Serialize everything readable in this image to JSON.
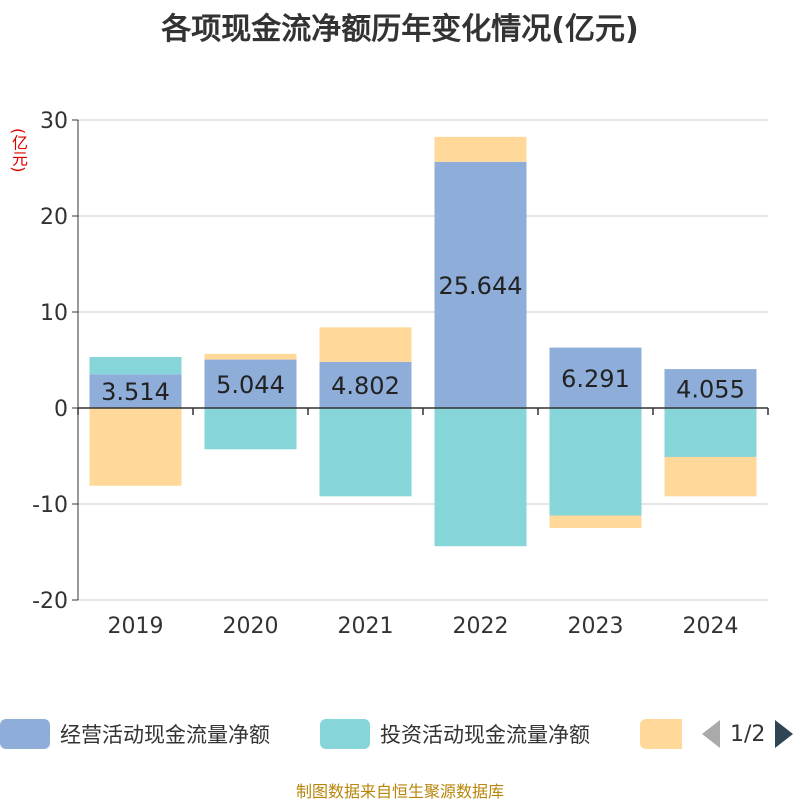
{
  "title": "各项现金流净额历年变化情况(亿元)",
  "unit_label": "(亿元)",
  "source": "制图数据来自恒生聚源数据库",
  "legend": {
    "items": [
      {
        "name": "经营活动现金流量净额",
        "color": "#8eaed9"
      },
      {
        "name": "投资活动现金流量净额",
        "color": "#86d5d8"
      },
      {
        "name": "",
        "color": "#ffd89a"
      }
    ],
    "page_text": "1/2"
  },
  "chart_data": {
    "type": "bar",
    "stacked": true,
    "title": "各项现金流净额历年变化情况(亿元)",
    "ylabel": "(亿元)",
    "ylim": [
      -20,
      30
    ],
    "yticks": [
      -20,
      -10,
      0,
      10,
      20,
      30
    ],
    "categories": [
      "2019",
      "2020",
      "2021",
      "2022",
      "2023",
      "2024"
    ],
    "series": [
      {
        "name": "经营活动现金流量净额",
        "color": "#8eaed9",
        "values": [
          3.514,
          5.044,
          4.802,
          25.644,
          6.291,
          4.055
        ],
        "show_labels": true
      },
      {
        "name": "投资活动现金流量净额",
        "color": "#86d5d8",
        "values": [
          1.8,
          -4.3,
          -9.2,
          -14.4,
          -11.2,
          -5.1
        ],
        "show_labels": false
      },
      {
        "name": "",
        "color": "#ffd89a",
        "values": [
          -8.1,
          0.6,
          3.6,
          2.6,
          -1.3,
          -4.1
        ],
        "show_labels": false
      }
    ],
    "label_values": [
      "3.514",
      "5.044",
      "4.802",
      "25.644",
      "6.291",
      "4.055"
    ]
  }
}
